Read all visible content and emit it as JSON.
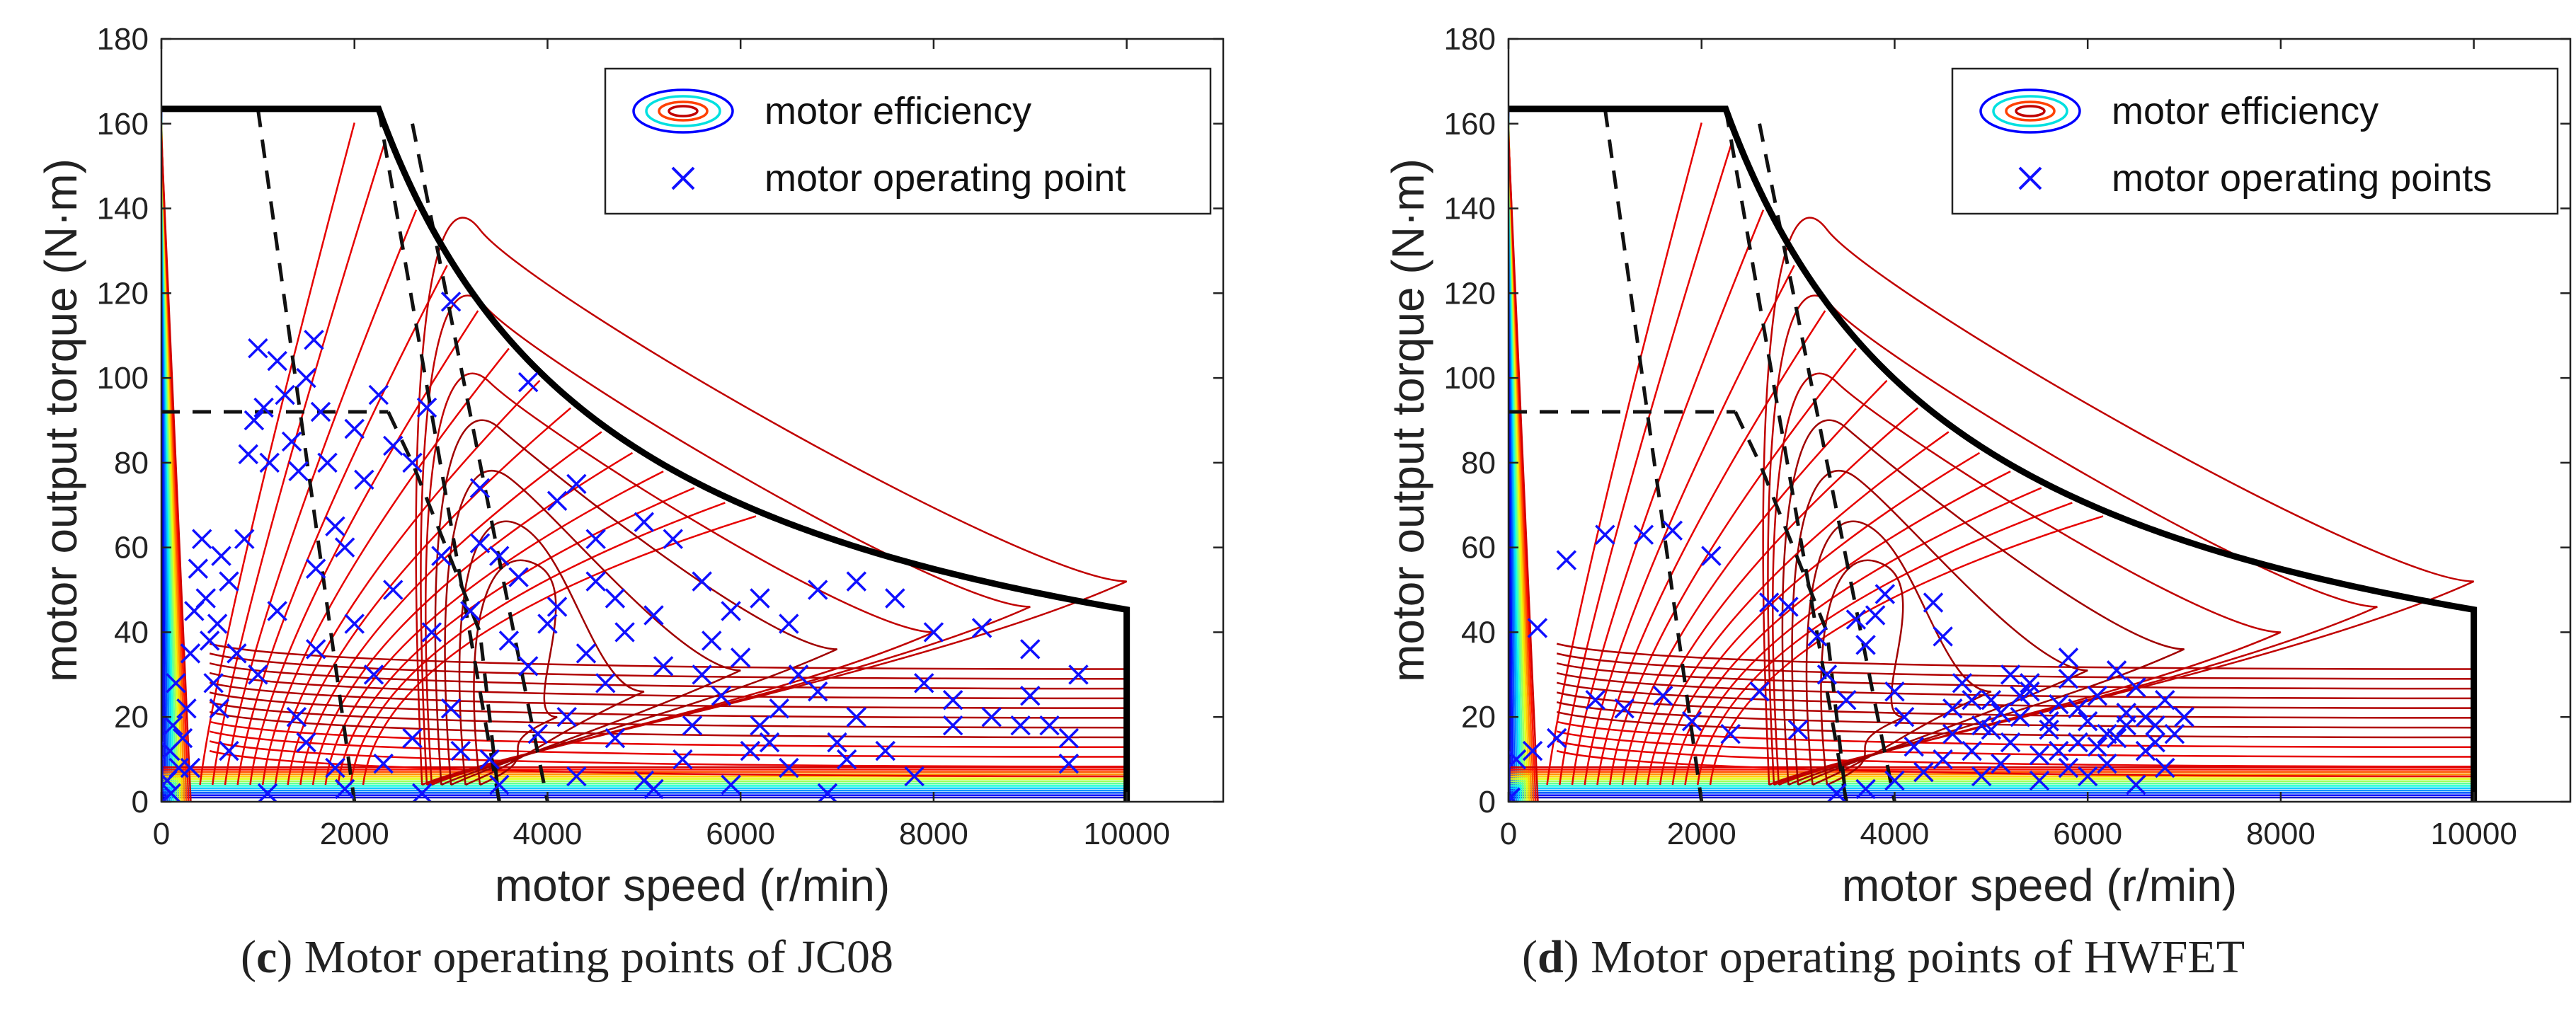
{
  "chart_data": [
    {
      "type": "scatter",
      "caption_letter": "c",
      "caption_text": " Motor operating points of JC08",
      "xlabel": "motor speed (r/min)",
      "ylabel": "motor output torque (N·m)",
      "xlim": [
        0,
        11000
      ],
      "ylim": [
        0,
        180
      ],
      "xticks": [
        0,
        2000,
        4000,
        6000,
        8000,
        10000
      ],
      "yticks": [
        0,
        20,
        40,
        60,
        80,
        100,
        120,
        140,
        160,
        180
      ],
      "legend": [
        "motor efficiency",
        "motor operating point"
      ],
      "legend_position": "top-right",
      "operating_points": [
        [
          60,
          5
        ],
        [
          90,
          12
        ],
        [
          120,
          18
        ],
        [
          150,
          28
        ],
        [
          100,
          2
        ],
        [
          180,
          8
        ],
        [
          220,
          15
        ],
        [
          260,
          22
        ],
        [
          300,
          35
        ],
        [
          340,
          45
        ],
        [
          380,
          55
        ],
        [
          420,
          62
        ],
        [
          460,
          48
        ],
        [
          500,
          38
        ],
        [
          540,
          28
        ],
        [
          580,
          42
        ],
        [
          620,
          58
        ],
        [
          700,
          52
        ],
        [
          780,
          35
        ],
        [
          860,
          62
        ],
        [
          900,
          82
        ],
        [
          960,
          90
        ],
        [
          1000,
          107
        ],
        [
          1060,
          93
        ],
        [
          1120,
          80
        ],
        [
          1200,
          104
        ],
        [
          1280,
          96
        ],
        [
          1350,
          85
        ],
        [
          1420,
          78
        ],
        [
          1500,
          100
        ],
        [
          1580,
          109
        ],
        [
          1650,
          92
        ],
        [
          1720,
          80
        ],
        [
          1800,
          65
        ],
        [
          1900,
          60
        ],
        [
          2000,
          88
        ],
        [
          2100,
          76
        ],
        [
          2250,
          96
        ],
        [
          2400,
          84
        ],
        [
          2600,
          80
        ],
        [
          2750,
          93
        ],
        [
          3000,
          118
        ],
        [
          3300,
          74
        ],
        [
          3500,
          58
        ],
        [
          3800,
          99
        ],
        [
          4100,
          71
        ],
        [
          4300,
          75
        ],
        [
          4500,
          62
        ],
        [
          4700,
          48
        ],
        [
          5000,
          66
        ],
        [
          5300,
          62
        ],
        [
          5600,
          52
        ],
        [
          5900,
          45
        ],
        [
          6200,
          48
        ],
        [
          6500,
          42
        ],
        [
          6800,
          50
        ],
        [
          7200,
          52
        ],
        [
          7600,
          48
        ],
        [
          8000,
          40
        ],
        [
          8500,
          41
        ],
        [
          9000,
          36
        ],
        [
          9500,
          30
        ],
        [
          9400,
          15
        ],
        [
          9000,
          25
        ],
        [
          8600,
          20
        ],
        [
          8200,
          18
        ],
        [
          7800,
          6
        ],
        [
          7500,
          12
        ],
        [
          7000,
          14
        ],
        [
          6600,
          30
        ],
        [
          6200,
          18
        ],
        [
          5800,
          25
        ],
        [
          5400,
          10
        ],
        [
          5000,
          5
        ],
        [
          4600,
          28
        ],
        [
          4200,
          20
        ],
        [
          3800,
          32
        ],
        [
          3400,
          10
        ],
        [
          3000,
          22
        ],
        [
          2600,
          15
        ],
        [
          2200,
          30
        ],
        [
          1800,
          8
        ],
        [
          1400,
          20
        ],
        [
          1000,
          30
        ],
        [
          600,
          22
        ],
        [
          300,
          8
        ],
        [
          2800,
          40
        ],
        [
          3200,
          45
        ],
        [
          3600,
          38
        ],
        [
          4000,
          42
        ],
        [
          4400,
          35
        ],
        [
          4800,
          40
        ],
        [
          5200,
          32
        ],
        [
          5600,
          30
        ],
        [
          6000,
          34
        ],
        [
          6400,
          22
        ],
        [
          6800,
          26
        ],
        [
          7200,
          20
        ],
        [
          8200,
          24
        ],
        [
          9200,
          18
        ],
        [
          9400,
          9
        ],
        [
          1200,
          45
        ],
        [
          1600,
          36
        ],
        [
          2400,
          50
        ],
        [
          2000,
          42
        ],
        [
          1600,
          55
        ],
        [
          2900,
          58
        ],
        [
          3300,
          61
        ],
        [
          3700,
          53
        ],
        [
          4100,
          46
        ],
        [
          4500,
          52
        ],
        [
          5100,
          44
        ],
        [
          5700,
          38
        ],
        [
          6100,
          12
        ],
        [
          6500,
          8
        ],
        [
          6900,
          2
        ],
        [
          5900,
          4
        ],
        [
          5100,
          3
        ],
        [
          4300,
          6
        ],
        [
          3500,
          4
        ],
        [
          2700,
          2
        ],
        [
          1900,
          3
        ],
        [
          1100,
          2
        ],
        [
          700,
          12
        ],
        [
          1500,
          14
        ],
        [
          2300,
          9
        ],
        [
          3100,
          12
        ],
        [
          3900,
          16
        ],
        [
          4700,
          15
        ],
        [
          5500,
          18
        ],
        [
          6300,
          14
        ],
        [
          7100,
          10
        ],
        [
          7900,
          28
        ],
        [
          8900,
          18
        ]
      ]
    },
    {
      "type": "scatter",
      "caption_letter": "d",
      "caption_text": " Motor operating points of HWFET",
      "xlabel": "motor speed (r/min)",
      "ylabel": "motor output torque (N·m)",
      "xlim": [
        0,
        11000
      ],
      "ylim": [
        0,
        180
      ],
      "xticks": [
        0,
        2000,
        4000,
        6000,
        8000,
        10000
      ],
      "yticks": [
        0,
        20,
        40,
        60,
        80,
        100,
        120,
        140,
        160,
        180
      ],
      "legend": [
        "motor efficiency",
        "motor operating points"
      ],
      "legend_position": "top-right",
      "operating_points": [
        [
          20,
          1
        ],
        [
          80,
          10
        ],
        [
          300,
          41
        ],
        [
          250,
          12
        ],
        [
          500,
          15
        ],
        [
          600,
          57
        ],
        [
          900,
          24
        ],
        [
          1000,
          63
        ],
        [
          1200,
          22
        ],
        [
          1400,
          63
        ],
        [
          1600,
          25
        ],
        [
          1700,
          64
        ],
        [
          1900,
          19
        ],
        [
          2100,
          58
        ],
        [
          2300,
          16
        ],
        [
          2600,
          26
        ],
        [
          2700,
          47
        ],
        [
          2900,
          46
        ],
        [
          3000,
          17
        ],
        [
          3200,
          39
        ],
        [
          3300,
          30
        ],
        [
          3500,
          24
        ],
        [
          3600,
          43
        ],
        [
          3700,
          37
        ],
        [
          3800,
          44
        ],
        [
          3900,
          49
        ],
        [
          4000,
          26
        ],
        [
          4100,
          20
        ],
        [
          4200,
          13
        ],
        [
          4400,
          47
        ],
        [
          4500,
          39
        ],
        [
          4300,
          7
        ],
        [
          4000,
          5
        ],
        [
          3700,
          3
        ],
        [
          3400,
          2
        ],
        [
          4600,
          22
        ],
        [
          4700,
          28
        ],
        [
          4800,
          12
        ],
        [
          4900,
          18
        ],
        [
          5000,
          24
        ],
        [
          5100,
          9
        ],
        [
          5200,
          14
        ],
        [
          5300,
          20
        ],
        [
          5400,
          26
        ],
        [
          5500,
          11
        ],
        [
          5600,
          17
        ],
        [
          5700,
          23
        ],
        [
          5800,
          29
        ],
        [
          5900,
          14
        ],
        [
          6000,
          19
        ],
        [
          6100,
          25
        ],
        [
          6200,
          9
        ],
        [
          6300,
          15
        ],
        [
          6400,
          21
        ],
        [
          6500,
          27
        ],
        [
          6600,
          12
        ],
        [
          6700,
          18
        ],
        [
          6800,
          24
        ],
        [
          6900,
          16
        ],
        [
          7000,
          20
        ],
        [
          5200,
          30
        ],
        [
          5800,
          34
        ],
        [
          6300,
          31
        ],
        [
          5500,
          5
        ],
        [
          6000,
          6
        ],
        [
          6500,
          4
        ],
        [
          4900,
          6
        ],
        [
          5400,
          28
        ],
        [
          6800,
          8
        ],
        [
          5100,
          21
        ],
        [
          5700,
          12
        ],
        [
          6200,
          16
        ],
        [
          6600,
          20
        ],
        [
          4600,
          16
        ],
        [
          5000,
          17
        ],
        [
          5300,
          25
        ],
        [
          5900,
          22
        ],
        [
          6400,
          18
        ],
        [
          6100,
          13
        ],
        [
          5600,
          19
        ],
        [
          6700,
          14
        ],
        [
          5800,
          8
        ],
        [
          4500,
          10
        ],
        [
          4800,
          24
        ]
      ]
    }
  ]
}
